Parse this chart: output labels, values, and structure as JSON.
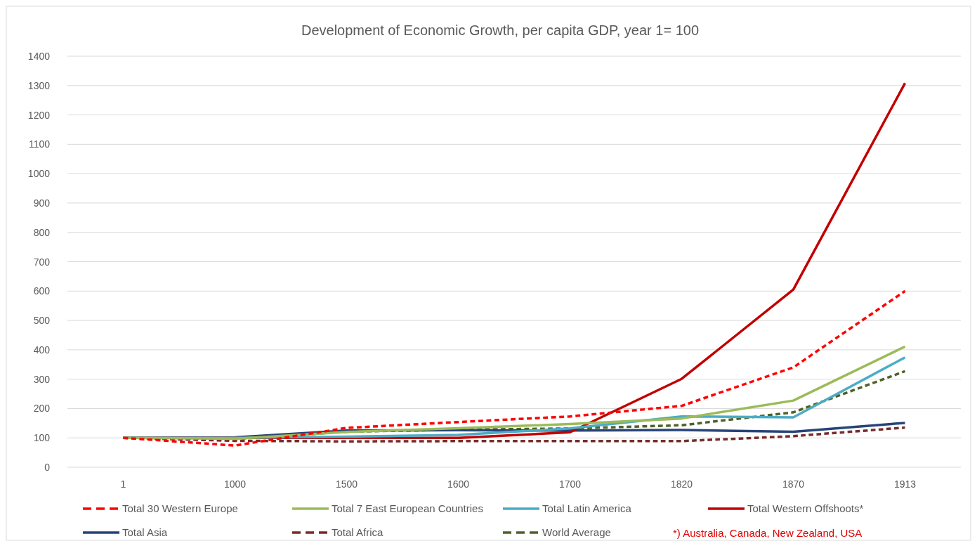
{
  "chart_data": {
    "type": "line",
    "title": "Development of Economic Growth, per capita GDP, year 1= 100",
    "categories": [
      "1",
      "1000",
      "1500",
      "1600",
      "1700",
      "1820",
      "1870",
      "1913"
    ],
    "series": [
      {
        "name": "Total 30  Western Europe",
        "color": "#ff0000",
        "line_style": "dashed",
        "values": [
          100,
          74,
          134,
          154,
          173,
          209,
          340,
          600
        ]
      },
      {
        "name": "Total 7 East European Countries",
        "color": "#9bbb59",
        "line_style": "solid",
        "values": [
          100,
          97,
          120,
          133,
          147,
          166,
          227,
          411
        ]
      },
      {
        "name": "Total Latin America",
        "color": "#4bacc6",
        "line_style": "solid",
        "values": [
          100,
          100,
          104,
          110,
          132,
          173,
          170,
          374
        ]
      },
      {
        "name": "Total Western Offshoots*",
        "color": "#c00000",
        "line_style": "solid",
        "values": [
          100,
          100,
          100,
          100,
          119,
          301,
          605,
          1308
        ]
      },
      {
        "name": "Total Asia",
        "color": "#264478",
        "line_style": "solid",
        "values": [
          100,
          102,
          125,
          126,
          125,
          127,
          121,
          151
        ]
      },
      {
        "name": "Total Africa",
        "color": "#772c2a",
        "line_style": "dashed",
        "values": [
          100,
          90,
          88,
          89,
          89,
          89,
          106,
          135
        ]
      },
      {
        "name": "World Average",
        "color": "#4f6228",
        "line_style": "dashed",
        "values": [
          100,
          96,
          121,
          128,
          132,
          143,
          187,
          327
        ]
      }
    ],
    "ylim": [
      0,
      1400
    ],
    "yticks": [
      0,
      100,
      200,
      300,
      400,
      500,
      600,
      700,
      800,
      900,
      1000,
      1100,
      1200,
      1300,
      1400
    ],
    "grid": "y",
    "legend": "bottom",
    "marker": "none",
    "annotations": [
      "*) Australia, Canada, New Zealand, USA"
    ]
  }
}
